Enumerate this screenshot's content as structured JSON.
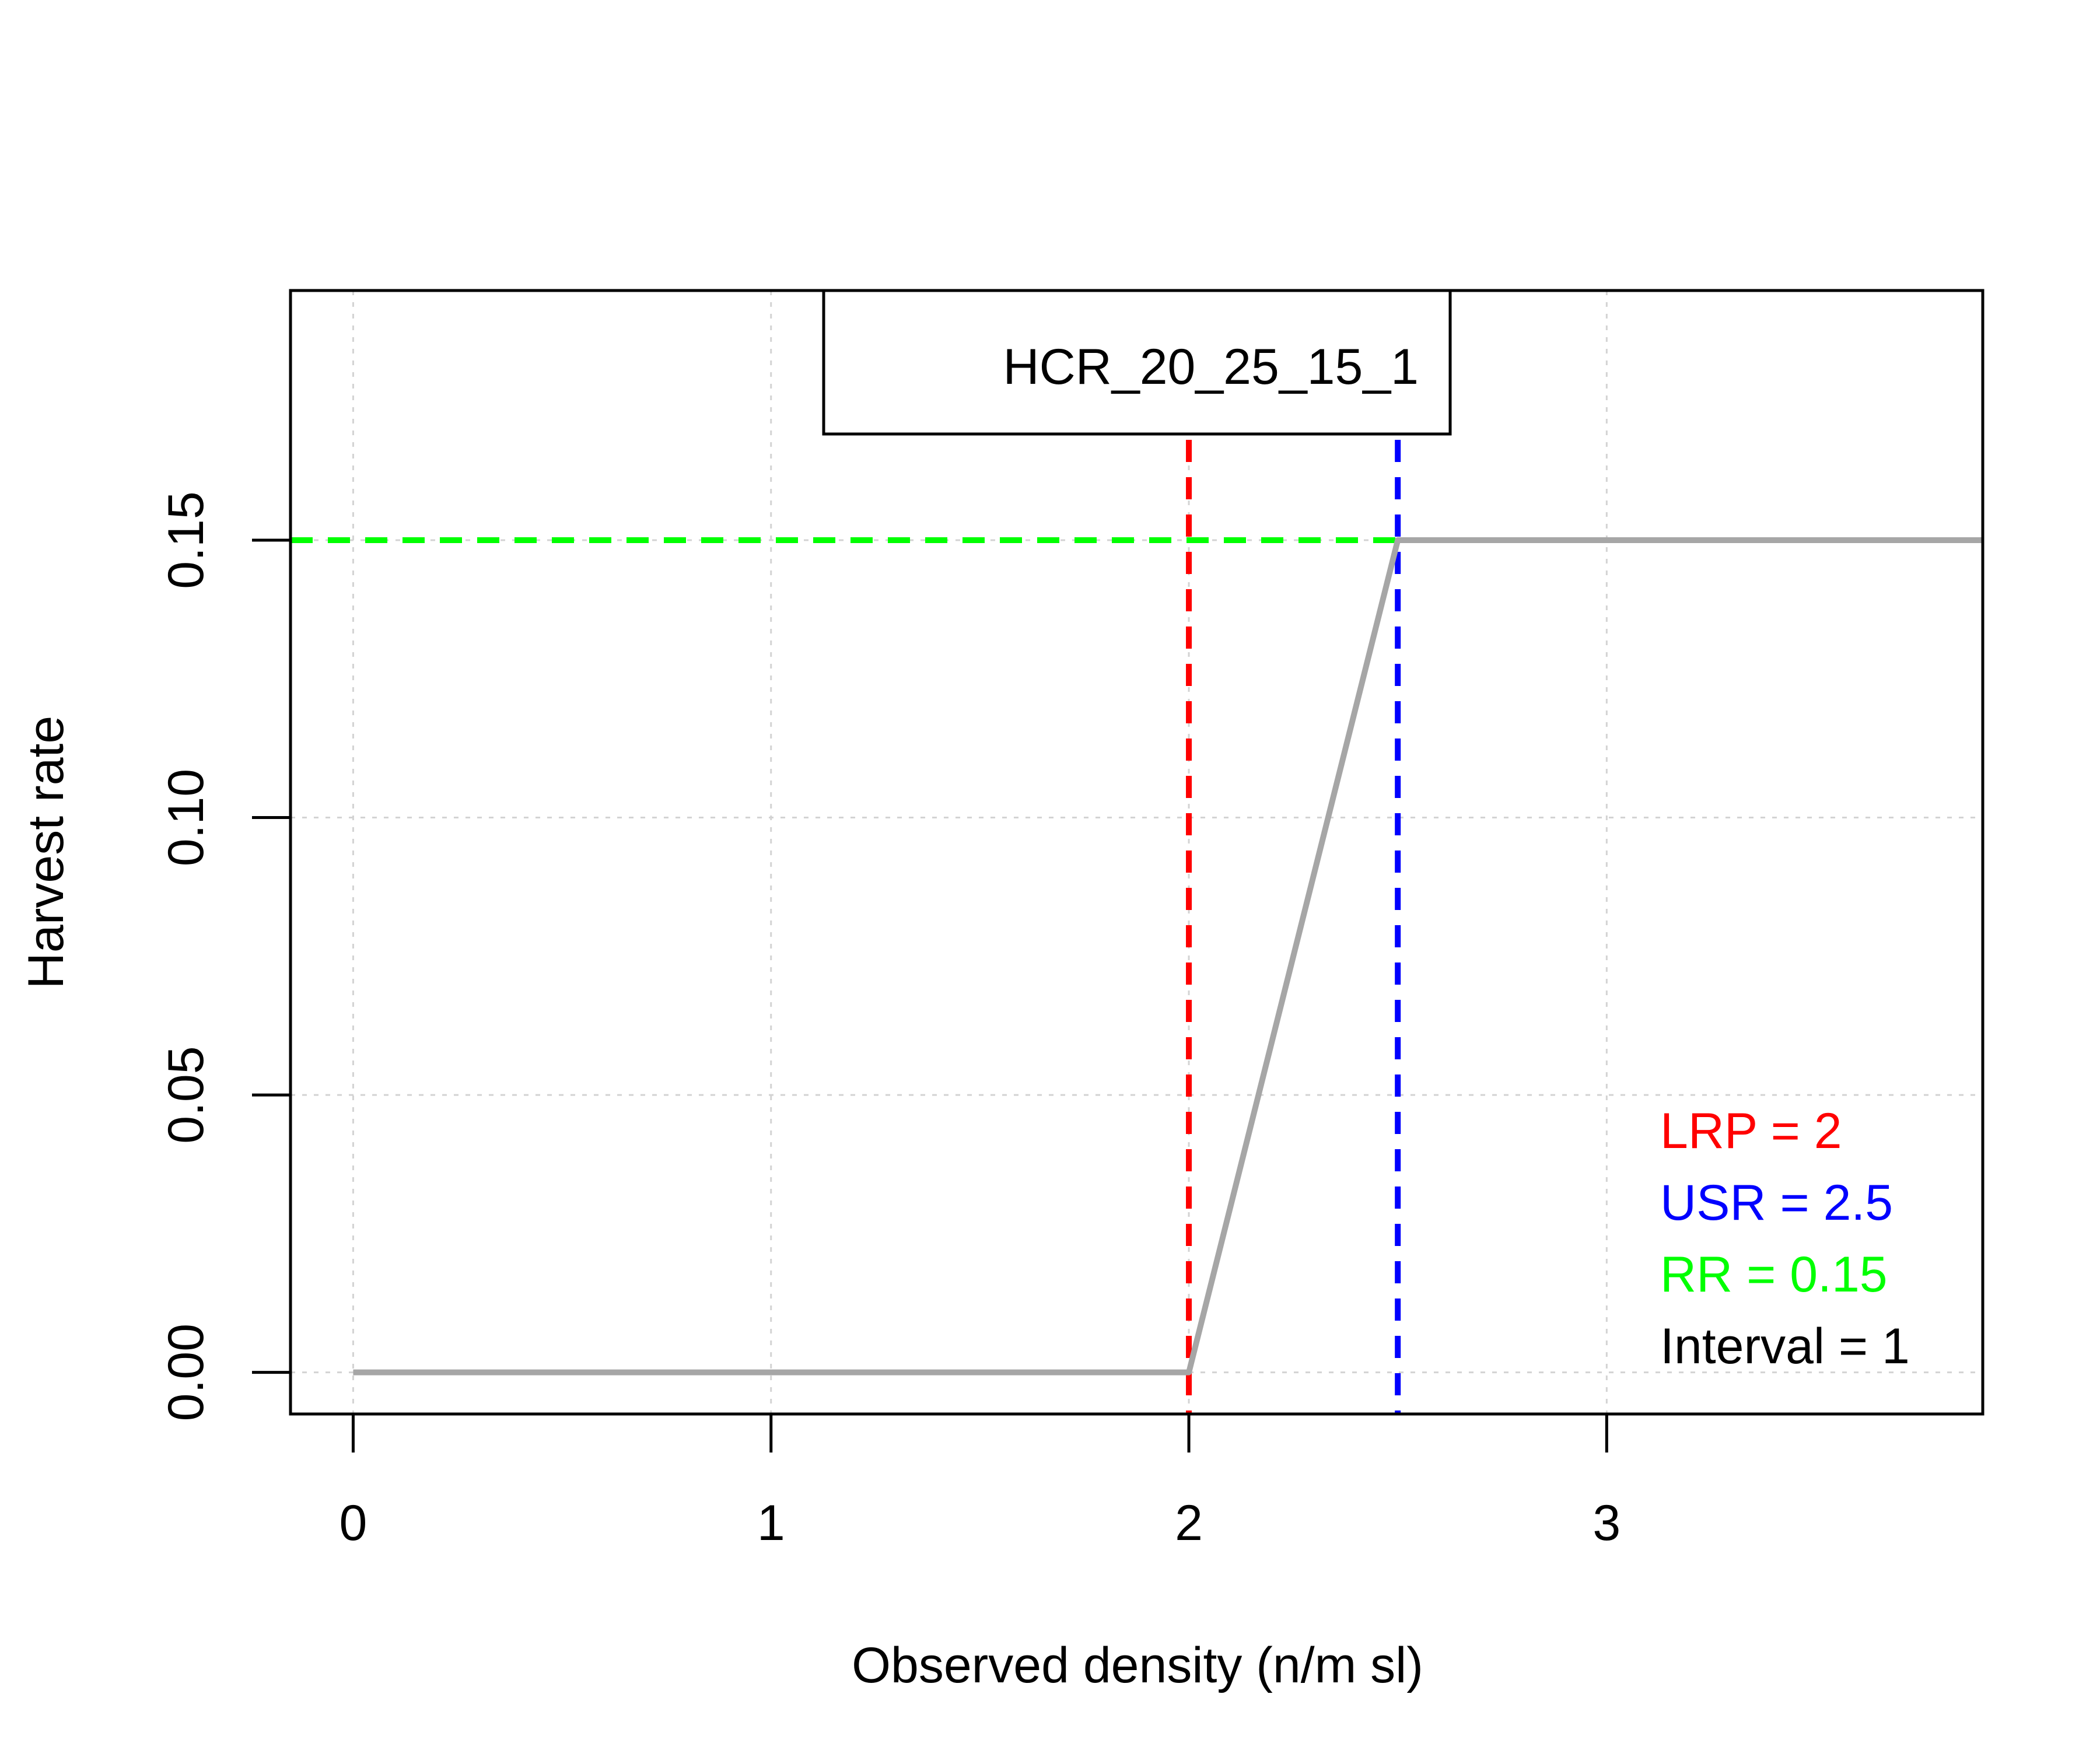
{
  "chart_data": {
    "type": "line",
    "title": "HCR_20_25_15_1",
    "xlabel": "Observed density (n/m sl)",
    "ylabel": "Harvest rate",
    "xlim": [
      -0.15,
      3.9
    ],
    "ylim": [
      -0.0075,
      0.195
    ],
    "x_ticks": [
      "0",
      "1",
      "2",
      "3"
    ],
    "y_ticks": [
      "0.00",
      "0.05",
      "0.10",
      "0.15"
    ],
    "grid": true,
    "series": [
      {
        "color": "#a6a6a6",
        "x": [
          0,
          2,
          2.5,
          3.9
        ],
        "y": [
          0,
          0,
          0.15,
          0.15
        ]
      }
    ],
    "reference_lines": [
      {
        "orientation": "vertical",
        "value": 2,
        "color": "#ff0000"
      },
      {
        "orientation": "vertical",
        "value": 2.5,
        "color": "#0000ff"
      },
      {
        "orientation": "horizontal",
        "value": 0.15,
        "color": "#00ff00"
      }
    ],
    "legend": {
      "position": "bottom-right",
      "entries": [
        {
          "text": "LRP = 2",
          "color": "#ff0000"
        },
        {
          "text": "USR = 2.5",
          "color": "#0000ff"
        },
        {
          "text": "RR = 0.15",
          "color": "#00ff00"
        },
        {
          "text": "Interval = 1",
          "color": "#000000"
        }
      ]
    }
  }
}
